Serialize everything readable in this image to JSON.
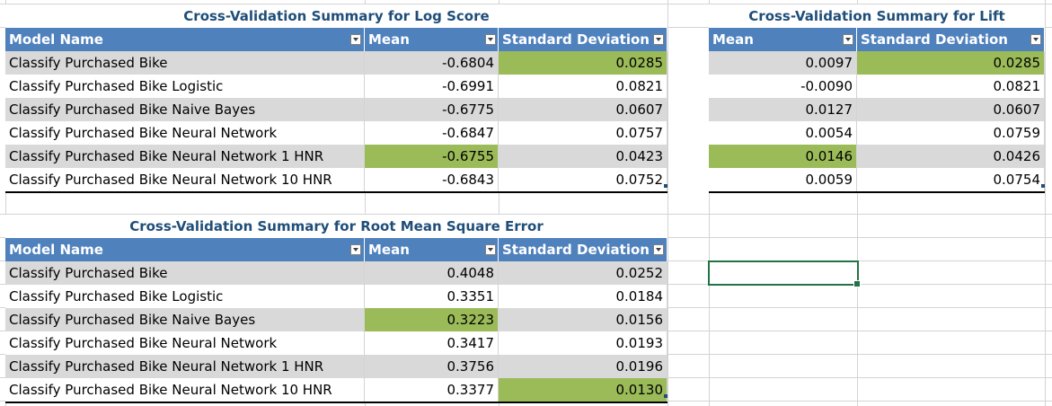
{
  "log_score": {
    "title": "Cross-Validation Summary for Log Score",
    "columns": [
      "Model Name",
      "Mean",
      "Standard Deviation"
    ],
    "rows": [
      {
        "model": "Classify Purchased Bike",
        "mean": "-0.6804",
        "std": "0.0285"
      },
      {
        "model": "Classify Purchased Bike Logistic",
        "mean": "-0.6991",
        "std": "0.0821"
      },
      {
        "model": "Classify Purchased Bike Naive Bayes",
        "mean": "-0.6775",
        "std": "0.0607"
      },
      {
        "model": "Classify Purchased Bike Neural Network",
        "mean": "-0.6847",
        "std": "0.0757"
      },
      {
        "model": "Classify Purchased Bike Neural Network 1 HNR",
        "mean": "-0.6755",
        "std": "0.0423"
      },
      {
        "model": "Classify Purchased Bike Neural Network 10 HNR",
        "mean": "-0.6843",
        "std": "0.0752"
      }
    ]
  },
  "lift": {
    "title": "Cross-Validation Summary for Lift",
    "columns": [
      "Mean",
      "Standard Deviation"
    ],
    "rows": [
      {
        "mean": "0.0097",
        "std": "0.0285"
      },
      {
        "mean": "-0.0090",
        "std": "0.0821"
      },
      {
        "mean": "0.0127",
        "std": "0.0607"
      },
      {
        "mean": "0.0054",
        "std": "0.0759"
      },
      {
        "mean": "0.0146",
        "std": "0.0426"
      },
      {
        "mean": "0.0059",
        "std": "0.0754"
      }
    ]
  },
  "rmse": {
    "title": "Cross-Validation Summary for Root Mean Square Error",
    "columns": [
      "Model Name",
      "Mean",
      "Standard Deviation"
    ],
    "rows": [
      {
        "model": "Classify Purchased Bike",
        "mean": "0.4048",
        "std": "0.0252"
      },
      {
        "model": "Classify Purchased Bike Logistic",
        "mean": "0.3351",
        "std": "0.0184"
      },
      {
        "model": "Classify Purchased Bike Naive Bayes",
        "mean": "0.3223",
        "std": "0.0156"
      },
      {
        "model": "Classify Purchased Bike Neural Network",
        "mean": "0.3417",
        "std": "0.0193"
      },
      {
        "model": "Classify Purchased Bike Neural Network 1 HNR",
        "mean": "0.3756",
        "std": "0.0196"
      },
      {
        "model": "Classify Purchased Bike Neural Network 10 HNR",
        "mean": "0.3377",
        "std": "0.0130"
      }
    ]
  },
  "colors": {
    "header": "#4f81bd",
    "band": "#d9d9d9",
    "highlight": "#9bbb59",
    "title": "#1f4e79",
    "selection": "#217346"
  }
}
